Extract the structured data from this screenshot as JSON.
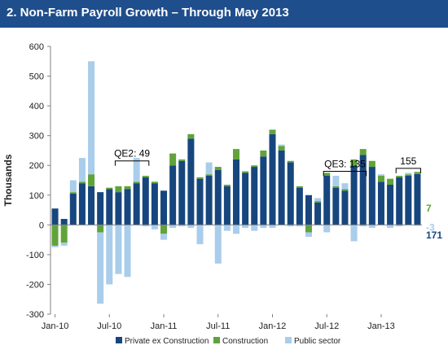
{
  "header": {
    "title": "2. Non-Farm Payroll Growth – Through May 2013"
  },
  "chart_data": {
    "type": "bar",
    "stacked": true,
    "ylabel": "Thousands",
    "ylim": [
      -300,
      600
    ],
    "yticks": [
      -300,
      -200,
      -100,
      0,
      100,
      200,
      300,
      400,
      500,
      600
    ],
    "x_tick_labels": [
      "Jan-10",
      "Jul-10",
      "Jan-11",
      "Jul-11",
      "Jan-12",
      "Jul-12",
      "Jan-13"
    ],
    "grid": false,
    "legend_position": "bottom",
    "colors": {
      "private": "#17467e",
      "construction": "#5fa33a",
      "public": "#a9cdeb"
    },
    "categories": [
      "Jan-10",
      "Feb-10",
      "Mar-10",
      "Apr-10",
      "May-10",
      "Jun-10",
      "Jul-10",
      "Aug-10",
      "Sep-10",
      "Oct-10",
      "Nov-10",
      "Dec-10",
      "Jan-11",
      "Feb-11",
      "Mar-11",
      "Apr-11",
      "May-11",
      "Jun-11",
      "Jul-11",
      "Aug-11",
      "Sep-11",
      "Oct-11",
      "Nov-11",
      "Dec-11",
      "Jan-12",
      "Feb-12",
      "Mar-12",
      "Apr-12",
      "May-12",
      "Jun-12",
      "Jul-12",
      "Aug-12",
      "Sep-12",
      "Oct-12",
      "Nov-12",
      "Dec-12",
      "Jan-13",
      "Feb-13",
      "Mar-13",
      "Apr-13",
      "May-13"
    ],
    "series": [
      {
        "name": "Private ex Construction",
        "values": [
          55,
          20,
          105,
          140,
          130,
          110,
          120,
          110,
          120,
          140,
          160,
          140,
          115,
          200,
          215,
          290,
          155,
          165,
          185,
          130,
          220,
          175,
          195,
          230,
          305,
          250,
          210,
          125,
          100,
          75,
          165,
          125,
          115,
          200,
          235,
          195,
          145,
          135,
          160,
          165,
          171
        ]
      },
      {
        "name": "Construction",
        "values": [
          -70,
          -60,
          5,
          5,
          40,
          -25,
          5,
          20,
          10,
          5,
          5,
          5,
          -30,
          40,
          5,
          15,
          5,
          5,
          10,
          5,
          35,
          5,
          5,
          20,
          15,
          15,
          5,
          5,
          -25,
          5,
          10,
          5,
          5,
          20,
          20,
          20,
          20,
          20,
          5,
          5,
          7
        ]
      },
      {
        "name": "Public sector",
        "values": [
          -5,
          -10,
          40,
          80,
          380,
          -240,
          -200,
          -165,
          -175,
          80,
          -5,
          -15,
          -20,
          -10,
          -5,
          -10,
          -65,
          40,
          -130,
          -20,
          -30,
          -10,
          -20,
          -10,
          -10,
          5,
          -5,
          -5,
          -15,
          10,
          -25,
          35,
          20,
          -55,
          -5,
          -10,
          5,
          -10,
          -5,
          5,
          -3
        ]
      }
    ],
    "annotations": [
      {
        "text": "QE2: 49"
      },
      {
        "text": "QE3: 135"
      },
      {
        "text": "155"
      }
    ],
    "end_labels": [
      {
        "text": "7",
        "color": "#5fa33a"
      },
      {
        "text": "171",
        "color": "#17467e"
      },
      {
        "text": "-3",
        "color": "#a9cdeb"
      }
    ]
  }
}
